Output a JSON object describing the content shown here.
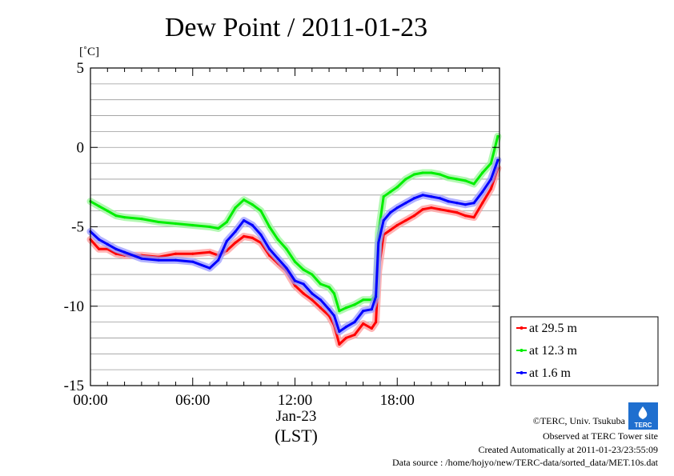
{
  "chart_data": {
    "type": "line",
    "title": "Dew Point / 2011-01-23",
    "ylabel": "[˚C]",
    "xlabel": "(LST)",
    "date_label": "Jan-23",
    "x_unit": "hour",
    "xlim": [
      0,
      24
    ],
    "ylim": [
      -15,
      5
    ],
    "x_ticks": [
      0,
      6,
      12,
      18
    ],
    "x_tick_labels": [
      "00:00",
      "06:00",
      "12:00",
      "18:00"
    ],
    "y_ticks": [
      5,
      0,
      -5,
      -10,
      -15
    ],
    "y_tick_labels": [
      "5",
      "0",
      "-5",
      "-10",
      "-15"
    ],
    "grid": true,
    "legend_position": "right",
    "series": [
      {
        "name": "at 29.5 m",
        "color": "#ff0000",
        "x": [
          0,
          0.5,
          1,
          1.5,
          2,
          3,
          4,
          5,
          6,
          7,
          7.5,
          8,
          8.5,
          9,
          9.5,
          10,
          10.5,
          11,
          11.5,
          12,
          12.5,
          13,
          13.5,
          14,
          14.3,
          14.6,
          15,
          15.5,
          16,
          16.5,
          16.75,
          16.9,
          17.2,
          17.6,
          18,
          18.5,
          19,
          19.5,
          20,
          20.5,
          21,
          21.5,
          22,
          22.5,
          23,
          23.5,
          23.9
        ],
        "y": [
          -5.8,
          -6.4,
          -6.4,
          -6.7,
          -6.8,
          -6.8,
          -6.9,
          -6.7,
          -6.7,
          -6.6,
          -6.8,
          -6.5,
          -6.0,
          -5.6,
          -5.7,
          -6.0,
          -6.8,
          -7.3,
          -7.8,
          -8.7,
          -9.2,
          -9.6,
          -10.1,
          -10.6,
          -11.2,
          -12.4,
          -12.0,
          -11.8,
          -11.1,
          -11.4,
          -11.0,
          -7.8,
          -5.5,
          -5.2,
          -4.9,
          -4.6,
          -4.3,
          -3.9,
          -3.8,
          -3.9,
          -4.0,
          -4.1,
          -4.3,
          -4.4,
          -3.5,
          -2.6,
          -1.3
        ]
      },
      {
        "name": "at 12.3 m",
        "color": "#00ee00",
        "x": [
          0,
          0.5,
          1,
          1.5,
          2,
          3,
          4,
          5,
          6,
          7,
          7.5,
          8,
          8.5,
          9,
          9.5,
          10,
          10.5,
          11,
          11.5,
          12,
          12.5,
          13,
          13.5,
          14,
          14.3,
          14.6,
          15,
          15.5,
          16,
          16.5,
          16.75,
          16.9,
          17.2,
          17.6,
          18,
          18.5,
          19,
          19.5,
          20,
          20.5,
          21,
          21.5,
          22,
          22.5,
          23,
          23.5,
          23.9
        ],
        "y": [
          -3.4,
          -3.7,
          -4.0,
          -4.3,
          -4.4,
          -4.5,
          -4.7,
          -4.8,
          -4.9,
          -5.0,
          -5.1,
          -4.7,
          -3.8,
          -3.3,
          -3.6,
          -4.0,
          -5.0,
          -5.8,
          -6.4,
          -7.2,
          -7.7,
          -8.0,
          -8.6,
          -8.8,
          -9.2,
          -10.3,
          -10.1,
          -9.9,
          -9.6,
          -9.6,
          -9.3,
          -5.4,
          -3.1,
          -2.8,
          -2.5,
          -2.0,
          -1.7,
          -1.6,
          -1.6,
          -1.7,
          -1.9,
          -2.0,
          -2.1,
          -2.3,
          -1.6,
          -1.0,
          0.7
        ]
      },
      {
        "name": "at 1.6 m",
        "color": "#0000ff",
        "x": [
          0,
          0.5,
          1,
          1.5,
          2,
          3,
          4,
          5,
          6,
          7,
          7.5,
          8,
          8.5,
          9,
          9.5,
          10,
          10.5,
          11,
          11.5,
          12,
          12.5,
          13,
          13.5,
          14,
          14.3,
          14.6,
          15,
          15.5,
          16,
          16.5,
          16.75,
          16.9,
          17.2,
          17.6,
          18,
          18.5,
          19,
          19.5,
          20,
          20.5,
          21,
          21.5,
          22,
          22.5,
          23,
          23.5,
          23.9
        ],
        "y": [
          -5.3,
          -5.8,
          -6.1,
          -6.4,
          -6.6,
          -7.0,
          -7.1,
          -7.1,
          -7.2,
          -7.6,
          -7.1,
          -5.9,
          -5.3,
          -4.6,
          -4.9,
          -5.5,
          -6.4,
          -7.0,
          -7.6,
          -8.4,
          -8.6,
          -9.2,
          -9.6,
          -10.2,
          -10.6,
          -11.6,
          -11.3,
          -11.0,
          -10.3,
          -10.2,
          -9.4,
          -6.0,
          -4.6,
          -4.1,
          -3.8,
          -3.5,
          -3.2,
          -3.0,
          -3.1,
          -3.2,
          -3.4,
          -3.5,
          -3.6,
          -3.5,
          -2.8,
          -2.0,
          -0.8
        ]
      }
    ]
  },
  "footer": {
    "copyright": "©TERC, Univ. Tsukuba",
    "observed": "Observed at TERC Tower site",
    "created": "Created Automatically at 2011-01-23/23:55:09",
    "source": "Data source : /home/hojyo/new/TERC-data/sorted_data/MET.10s.dat",
    "logo_text": "TERC"
  }
}
